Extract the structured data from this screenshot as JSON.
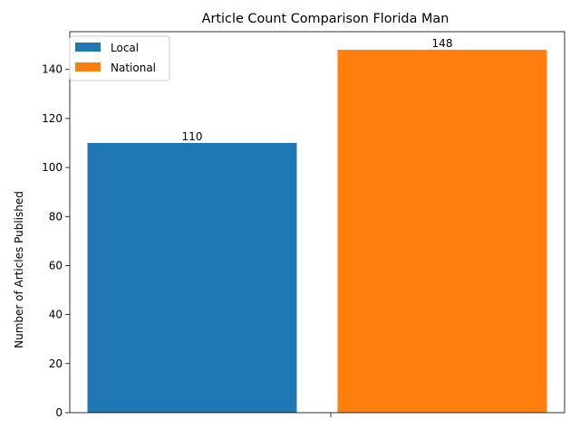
{
  "chart_data": {
    "type": "bar",
    "title": "Article Count Comparison Florida Man",
    "xlabel": "",
    "ylabel": "Number of Articles Published",
    "ylim": [
      0,
      155.4
    ],
    "yticks": [
      0,
      20,
      40,
      60,
      80,
      100,
      120,
      140
    ],
    "grid": false,
    "legend_position": "upper left",
    "series": [
      {
        "name": "Local",
        "value": 110,
        "color": "#1f77b4",
        "data_label": "110"
      },
      {
        "name": "National",
        "value": 148,
        "color": "#ff7f0e",
        "data_label": "148"
      }
    ]
  }
}
